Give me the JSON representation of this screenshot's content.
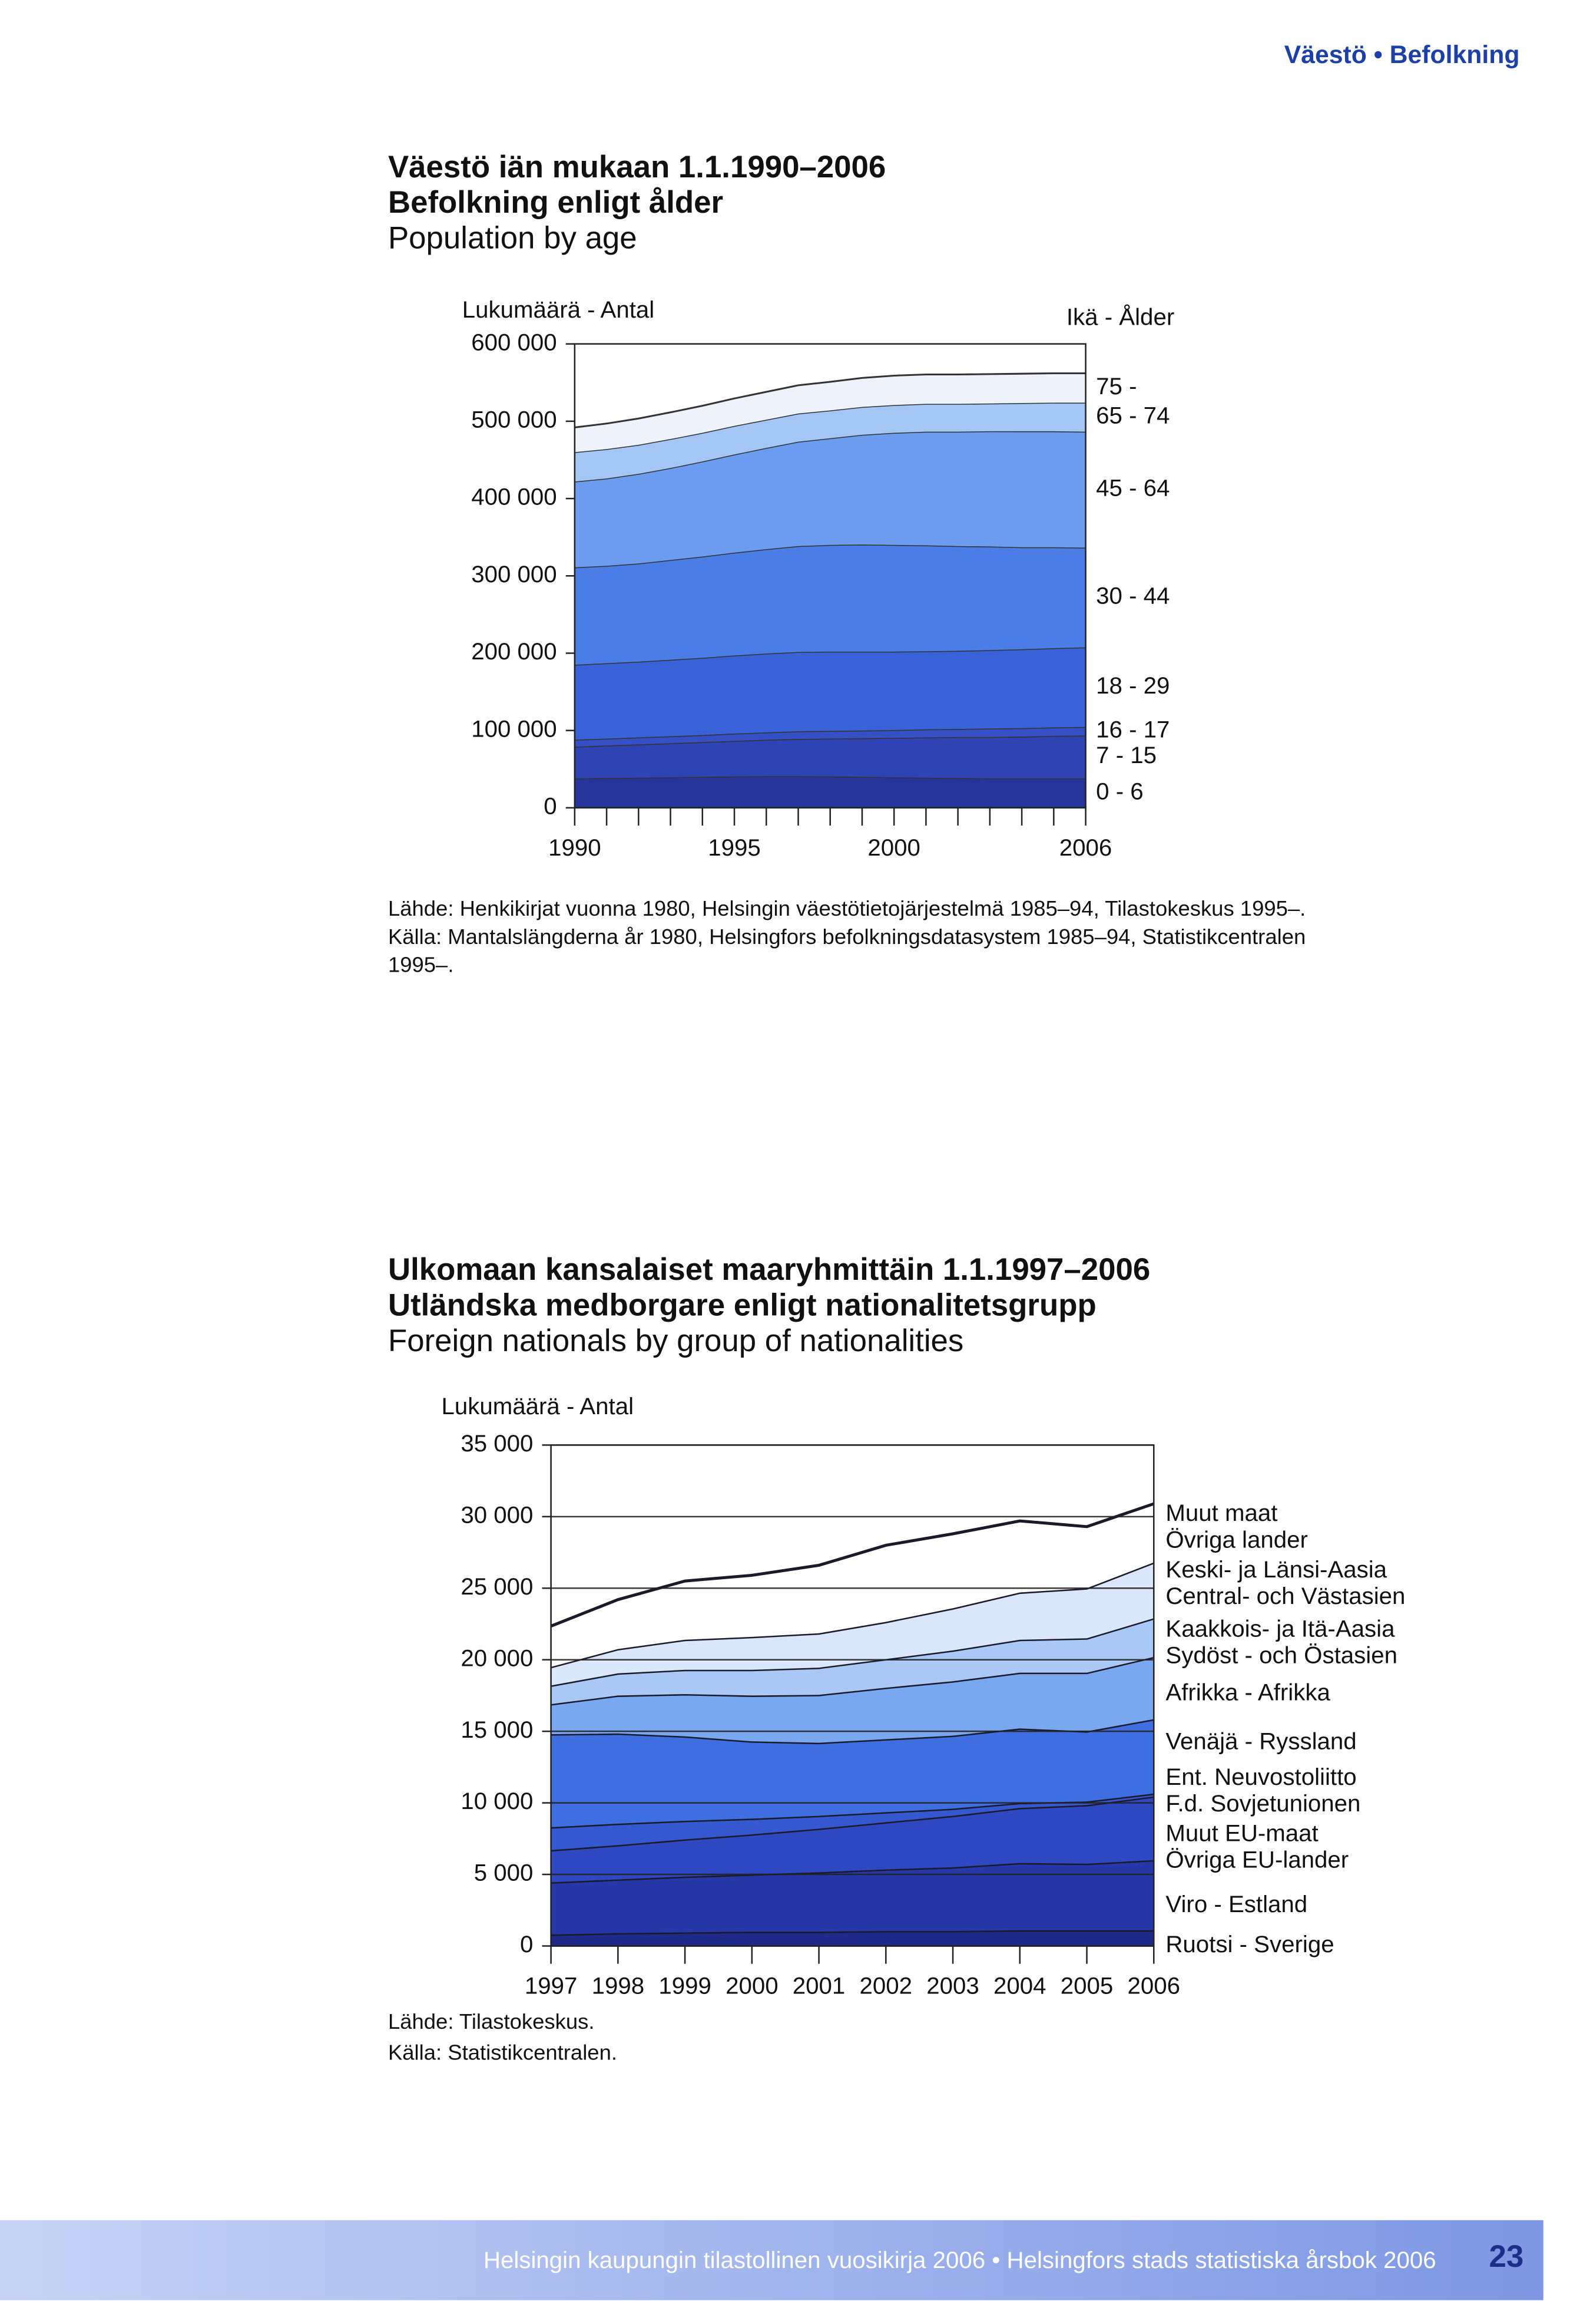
{
  "header": "Väestö • Befolkning",
  "footer": {
    "text": "Helsingin kaupungin tilastollinen vuosikirja 2006 • Helsingfors stads statistiska årsbok 2006",
    "page": "23"
  },
  "chart_data": [
    {
      "type": "area",
      "stacked": true,
      "titles": [
        "Väestö iän mukaan 1.1.1990–2006",
        "Befolkning enligt ålder",
        "Population by age"
      ],
      "y_label": "Lukumäärä - Antal",
      "legend_title": "Ikä - Ålder",
      "x": [
        1990,
        1991,
        1992,
        1993,
        1994,
        1995,
        1996,
        1997,
        1998,
        1999,
        2000,
        2001,
        2002,
        2003,
        2004,
        2005,
        2006
      ],
      "xlim": [
        1990,
        2006
      ],
      "xticks": [
        1990,
        1995,
        2000,
        2006
      ],
      "ylim": [
        0,
        600000
      ],
      "yticks": [
        {
          "value": 0,
          "label": "0"
        },
        {
          "value": 100000,
          "label": "100 000"
        },
        {
          "value": 200000,
          "label": "200 000"
        },
        {
          "value": 300000,
          "label": "300 000"
        },
        {
          "value": 400000,
          "label": "400 000"
        },
        {
          "value": 500000,
          "label": "500 000"
        },
        {
          "value": 600000,
          "label": "600 000"
        }
      ],
      "series": [
        {
          "name": [
            "0 - 6"
          ],
          "color": "#27349a",
          "values": [
            38000,
            38500,
            39000,
            39500,
            40000,
            40500,
            41000,
            41000,
            40500,
            40000,
            39500,
            39000,
            38500,
            38000,
            38000,
            38000,
            38000
          ]
        },
        {
          "name": [
            "7 - 15"
          ],
          "color": "#2e44b4",
          "values": [
            41000,
            42000,
            43000,
            44000,
            45000,
            46000,
            47000,
            48000,
            49000,
            50000,
            51000,
            52000,
            53000,
            53500,
            54000,
            55000,
            55500
          ]
        },
        {
          "name": [
            "16 - 17"
          ],
          "color": "#3450c4",
          "values": [
            9000,
            9000,
            9000,
            9000,
            9000,
            9500,
            9500,
            10000,
            10000,
            10000,
            10000,
            10500,
            10500,
            11000,
            11000,
            11000,
            11000
          ]
        },
        {
          "name": [
            "18 - 29"
          ],
          "color": "#3a62d8",
          "values": [
            97000,
            97500,
            98000,
            99000,
            100000,
            101000,
            102000,
            102500,
            102500,
            102000,
            101500,
            101000,
            101000,
            101500,
            102000,
            102500,
            103000
          ]
        },
        {
          "name": [
            "30 - 44"
          ],
          "color": "#4a7de6",
          "values": [
            126000,
            126000,
            127000,
            129000,
            131000,
            133000,
            135000,
            137000,
            138000,
            138500,
            138000,
            137000,
            135500,
            134000,
            132000,
            130500,
            129000
          ]
        },
        {
          "name": [
            "45 - 64"
          ],
          "color": "#6c9cf0",
          "values": [
            111000,
            113000,
            116000,
            119000,
            123000,
            127000,
            131000,
            135000,
            138000,
            142000,
            145000,
            147000,
            148000,
            149000,
            150000,
            150000,
            150000
          ]
        },
        {
          "name": [
            "65 - 74"
          ],
          "color": "#a3c6f5",
          "values": [
            38000,
            38000,
            37500,
            37500,
            37000,
            37000,
            36500,
            36500,
            36000,
            36000,
            36000,
            36000,
            36000,
            36000,
            36500,
            37000,
            37500
          ]
        },
        {
          "name": [
            "75 -"
          ],
          "color": "#eef2fb",
          "values": [
            32000,
            33000,
            34000,
            34500,
            35000,
            35500,
            36000,
            36500,
            37000,
            37500,
            38000,
            38000,
            38000,
            38000,
            38000,
            38000,
            38000
          ]
        }
      ],
      "source": [
        "Lähde: Henkikirjat vuonna 1980, Helsingin väestötietojärjestelmä 1985–94, Tilastokeskus 1995–.",
        "Källa: Mantalslängderna år 1980, Helsingfors befolkningsdatasystem 1985–94, Statistikcentralen",
        "1995–."
      ]
    },
    {
      "type": "area",
      "stacked": true,
      "titles": [
        "Ulkomaan kansalaiset maaryhmittäin 1.1.1997–2006",
        "Utländska medborgare enligt nationalitetsgrupp",
        "Foreign nationals by group of nationalities"
      ],
      "y_label": "Lukumäärä - Antal",
      "x": [
        1997,
        1998,
        1999,
        2000,
        2001,
        2002,
        2003,
        2004,
        2005,
        2006
      ],
      "xlim": [
        1997,
        2006
      ],
      "xticks": [
        1997,
        1998,
        1999,
        2000,
        2001,
        2002,
        2003,
        2004,
        2005,
        2006
      ],
      "ylim": [
        0,
        35000
      ],
      "yticks": [
        {
          "value": 0,
          "label": "0"
        },
        {
          "value": 5000,
          "label": "5 000"
        },
        {
          "value": 10000,
          "label": "10 000"
        },
        {
          "value": 15000,
          "label": "15 000"
        },
        {
          "value": 20000,
          "label": "20 000"
        },
        {
          "value": 25000,
          "label": "25 000"
        },
        {
          "value": 30000,
          "label": "30 000"
        },
        {
          "value": 35000,
          "label": "35 000"
        }
      ],
      "grid": true,
      "series": [
        {
          "name": [
            "Ruotsi - Sverige"
          ],
          "color": "#1f2a8a",
          "values": [
            800,
            900,
            950,
            1000,
            1000,
            1050,
            1050,
            1100,
            1100,
            1100
          ]
        },
        {
          "name": [
            "Viro - Estland"
          ],
          "color": "#2638a8",
          "values": [
            3650,
            3750,
            3900,
            4000,
            4150,
            4300,
            4450,
            4700,
            4650,
            4900
          ]
        },
        {
          "name": [
            "Muut EU-maat",
            "Övriga EU-lander"
          ],
          "color": "#2d48c0",
          "values": [
            2250,
            2400,
            2600,
            2800,
            3050,
            3300,
            3600,
            3850,
            4100,
            4450
          ]
        },
        {
          "name": [
            "Ent. Neuvostoliitto",
            "F.d. Sovjetunionen"
          ],
          "color": "#3558d0",
          "values": [
            1600,
            1500,
            1300,
            1100,
            900,
            700,
            500,
            350,
            250,
            200
          ]
        },
        {
          "name": [
            "Venäjä - Ryssland"
          ],
          "color": "#3f6ee0",
          "values": [
            6500,
            6300,
            5900,
            5400,
            5100,
            5100,
            5100,
            5200,
            4900,
            5200
          ]
        },
        {
          "name": [
            "Afrikka - Afrikka"
          ],
          "color": "#7aa8f0",
          "values": [
            2100,
            2650,
            2950,
            3200,
            3350,
            3600,
            3800,
            3900,
            4100,
            4350
          ]
        },
        {
          "name": [
            "Kaakkois- ja Itä-Aasia",
            "Sydöst - och Östasien"
          ],
          "color": "#a9c8f5",
          "values": [
            1300,
            1550,
            1700,
            1800,
            1900,
            2000,
            2150,
            2300,
            2400,
            2700
          ]
        },
        {
          "name": [
            "Keski- ja Länsi-Aasia",
            "Central- och Västasien"
          ],
          "color": "#dae6fa",
          "values": [
            1300,
            1700,
            2100,
            2300,
            2400,
            2600,
            2950,
            3300,
            3500,
            3900
          ]
        },
        {
          "name": [
            "Muut maat",
            "Övriga lander"
          ],
          "color": "#ffffff",
          "values": [
            2850,
            3450,
            4100,
            4300,
            4750,
            5350,
            5200,
            5000,
            4300,
            4100
          ]
        }
      ],
      "source": [
        "Lähde: Tilastokeskus.",
        "Källa: Statistikcentralen."
      ]
    }
  ]
}
